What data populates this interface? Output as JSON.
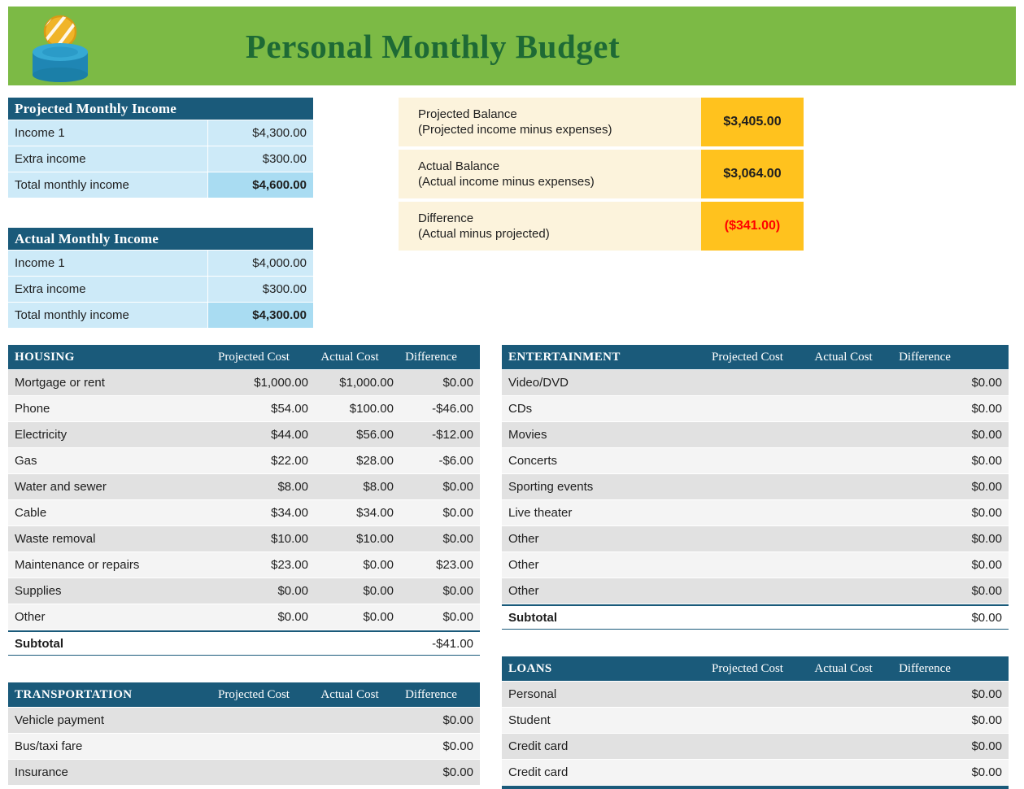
{
  "banner": {
    "title": "Personal Monthly Budget"
  },
  "colors": {
    "banner_green": "#7CBA45",
    "title_green": "#1E6A35",
    "header_teal": "#1A5A7A",
    "income_row_blue": "#CDEAF8",
    "income_total_blue": "#A9DCF2",
    "summary_cream": "#FCF3DC",
    "summary_orange": "#FFC21E",
    "negative_red": "#FF0000",
    "row_gray_dark": "#E1E1E1",
    "row_gray_light": "#F4F4F4"
  },
  "income": {
    "projected": {
      "title": "Projected Monthly Income",
      "rows": [
        {
          "label": "Income 1",
          "value": "$4,300.00"
        },
        {
          "label": "Extra income",
          "value": "$300.00"
        }
      ],
      "total_label": "Total monthly income",
      "total_value": "$4,600.00"
    },
    "actual": {
      "title": "Actual Monthly Income",
      "rows": [
        {
          "label": "Income 1",
          "value": "$4,000.00"
        },
        {
          "label": "Extra income",
          "value": "$300.00"
        }
      ],
      "total_label": "Total monthly income",
      "total_value": "$4,300.00"
    }
  },
  "summary": {
    "rows": [
      {
        "label": "Projected Balance",
        "sublabel": "(Projected income minus expenses)",
        "value": "$3,405.00"
      },
      {
        "label": "Actual Balance",
        "sublabel": "(Actual income minus expenses)",
        "value": "$3,064.00"
      },
      {
        "label": "Difference",
        "sublabel": "(Actual minus projected)",
        "value": "($341.00)"
      }
    ]
  },
  "columns": {
    "projected": "Projected Cost",
    "actual": "Actual Cost",
    "difference": "Difference"
  },
  "tables": {
    "housing": {
      "title": "HOUSING",
      "rows": [
        {
          "label": "Mortgage or rent",
          "projected": "$1,000.00",
          "actual": "$1,000.00",
          "difference": "$0.00"
        },
        {
          "label": "Phone",
          "projected": "$54.00",
          "actual": "$100.00",
          "difference": "-$46.00"
        },
        {
          "label": "Electricity",
          "projected": "$44.00",
          "actual": "$56.00",
          "difference": "-$12.00"
        },
        {
          "label": "Gas",
          "projected": "$22.00",
          "actual": "$28.00",
          "difference": "-$6.00"
        },
        {
          "label": "Water and sewer",
          "projected": "$8.00",
          "actual": "$8.00",
          "difference": "$0.00"
        },
        {
          "label": "Cable",
          "projected": "$34.00",
          "actual": "$34.00",
          "difference": "$0.00"
        },
        {
          "label": "Waste removal",
          "projected": "$10.00",
          "actual": "$10.00",
          "difference": "$0.00"
        },
        {
          "label": "Maintenance or repairs",
          "projected": "$23.00",
          "actual": "$0.00",
          "difference": "$23.00"
        },
        {
          "label": "Supplies",
          "projected": "$0.00",
          "actual": "$0.00",
          "difference": "$0.00"
        },
        {
          "label": "Other",
          "projected": "$0.00",
          "actual": "$0.00",
          "difference": "$0.00"
        }
      ],
      "subtotal": {
        "label": "Subtotal",
        "difference": "-$41.00"
      }
    },
    "entertainment": {
      "title": "ENTERTAINMENT",
      "rows": [
        {
          "label": "Video/DVD",
          "projected": "",
          "actual": "",
          "difference": "$0.00"
        },
        {
          "label": "CDs",
          "projected": "",
          "actual": "",
          "difference": "$0.00"
        },
        {
          "label": "Movies",
          "projected": "",
          "actual": "",
          "difference": "$0.00"
        },
        {
          "label": "Concerts",
          "projected": "",
          "actual": "",
          "difference": "$0.00"
        },
        {
          "label": "Sporting events",
          "projected": "",
          "actual": "",
          "difference": "$0.00"
        },
        {
          "label": "Live theater",
          "projected": "",
          "actual": "",
          "difference": "$0.00"
        },
        {
          "label": "Other",
          "projected": "",
          "actual": "",
          "difference": "$0.00"
        },
        {
          "label": "Other",
          "projected": "",
          "actual": "",
          "difference": "$0.00"
        },
        {
          "label": "Other",
          "projected": "",
          "actual": "",
          "difference": "$0.00"
        }
      ],
      "subtotal": {
        "label": "Subtotal",
        "difference": "$0.00"
      }
    },
    "transportation": {
      "title": "TRANSPORTATION",
      "rows": [
        {
          "label": "Vehicle payment",
          "projected": "",
          "actual": "",
          "difference": "$0.00"
        },
        {
          "label": "Bus/taxi fare",
          "projected": "",
          "actual": "",
          "difference": "$0.00"
        },
        {
          "label": "Insurance",
          "projected": "",
          "actual": "",
          "difference": "$0.00"
        }
      ]
    },
    "loans": {
      "title": "LOANS",
      "rows": [
        {
          "label": "Personal",
          "projected": "",
          "actual": "",
          "difference": "$0.00"
        },
        {
          "label": "Student",
          "projected": "",
          "actual": "",
          "difference": "$0.00"
        },
        {
          "label": "Credit card",
          "projected": "",
          "actual": "",
          "difference": "$0.00"
        },
        {
          "label": "Credit card",
          "projected": "",
          "actual": "",
          "difference": "$0.00"
        }
      ]
    }
  }
}
